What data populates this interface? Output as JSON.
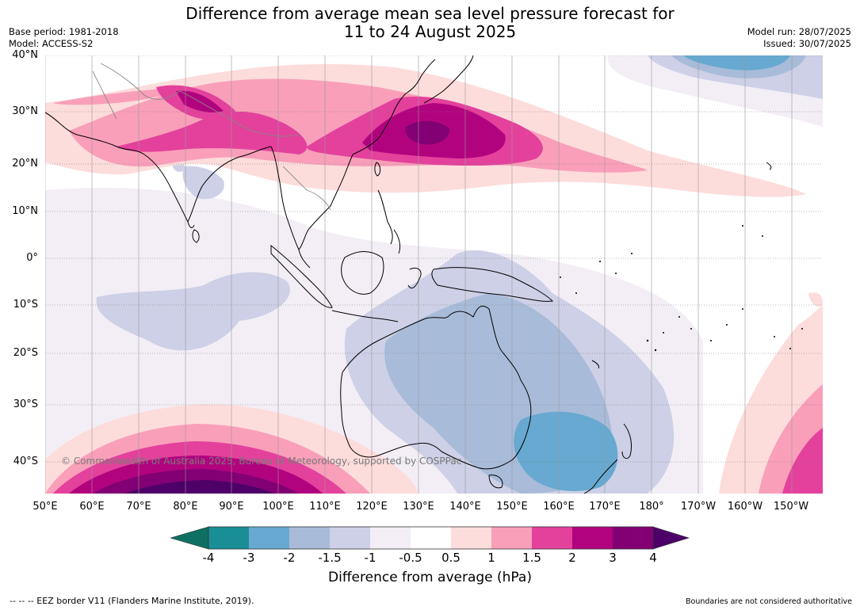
{
  "title_line1": "Difference from average mean sea level pressure forecast for",
  "title_line2": "11 to 24 August 2025",
  "base_period": "Base period: 1981-2018",
  "model": "Model: ACCESS-S2",
  "model_run": "Model run: 28/07/2025",
  "issued": "Issued: 30/07/2025",
  "lat_labels": [
    "40°N",
    "30°N",
    "20°N",
    "10°N",
    "0°",
    "10°S",
    "20°S",
    "30°S",
    "40°S"
  ],
  "lon_labels": [
    "50°E",
    "60°E",
    "70°E",
    "80°E",
    "90°E",
    "100°E",
    "110°E",
    "120°E",
    "130°E",
    "140°E",
    "150°E",
    "160°E",
    "170°E",
    "180°",
    "170°W",
    "160°W",
    "150°W"
  ],
  "colorbar": {
    "labels": [
      "-4",
      "-3",
      "-2",
      "-1.5",
      "-1",
      "-0.5",
      "0.5",
      "1",
      "1.5",
      "2",
      "3",
      "4"
    ],
    "colors": [
      "#0e7062",
      "#1a8e96",
      "#67a9d0",
      "#a8bbd9",
      "#cdd0e6",
      "#f3eef6",
      "#ffffff",
      "#fddcdc",
      "#f99fba",
      "#e3419c",
      "#b2037f",
      "#820073",
      "#4e0069"
    ],
    "title": "Difference from average (hPa)"
  },
  "copyright": "© Commonwealth of Australia 2025, Bureau of Meteorology, supported by COSPPac",
  "footer_left": "--  --  -- EEZ border V11 (Flanders Marine Institute, 2019).",
  "footer_right": "Boundaries are not considered authoritative"
}
